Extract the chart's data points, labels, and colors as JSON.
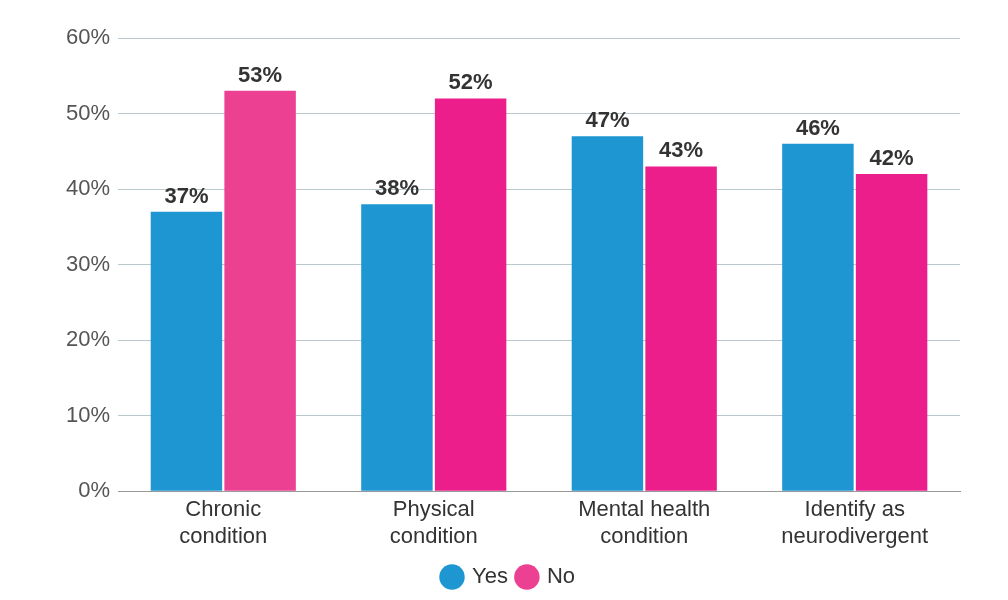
{
  "chart_data": {
    "type": "bar",
    "categories": [
      "Chronic condition",
      "Physical condition",
      "Mental health condition",
      "Identify as neurodivergent"
    ],
    "series": [
      {
        "name": "Yes",
        "color": "#1e96d2",
        "values": [
          37,
          38,
          47,
          46
        ],
        "value_labels": [
          "37%",
          "38%",
          "47%",
          "46%"
        ]
      },
      {
        "name": "No",
        "color": "#ec1e8c",
        "colors": [
          "#ec4092",
          "#ec1e8c",
          "#ec1e8c",
          "#ec1e8c"
        ],
        "values": [
          53,
          52,
          43,
          42
        ],
        "value_labels": [
          "53%",
          "52%",
          "43%",
          "42%"
        ]
      }
    ],
    "ylim": [
      0,
      60
    ],
    "yticks": [
      {
        "value": 0,
        "label": "0%"
      },
      {
        "value": 10,
        "label": "10%"
      },
      {
        "value": 20,
        "label": "20%"
      },
      {
        "value": 30,
        "label": "30%"
      },
      {
        "value": 40,
        "label": "40%"
      },
      {
        "value": 50,
        "label": "50%"
      },
      {
        "value": 60,
        "label": "60%"
      }
    ],
    "grid": "y",
    "legend": "bottom"
  }
}
